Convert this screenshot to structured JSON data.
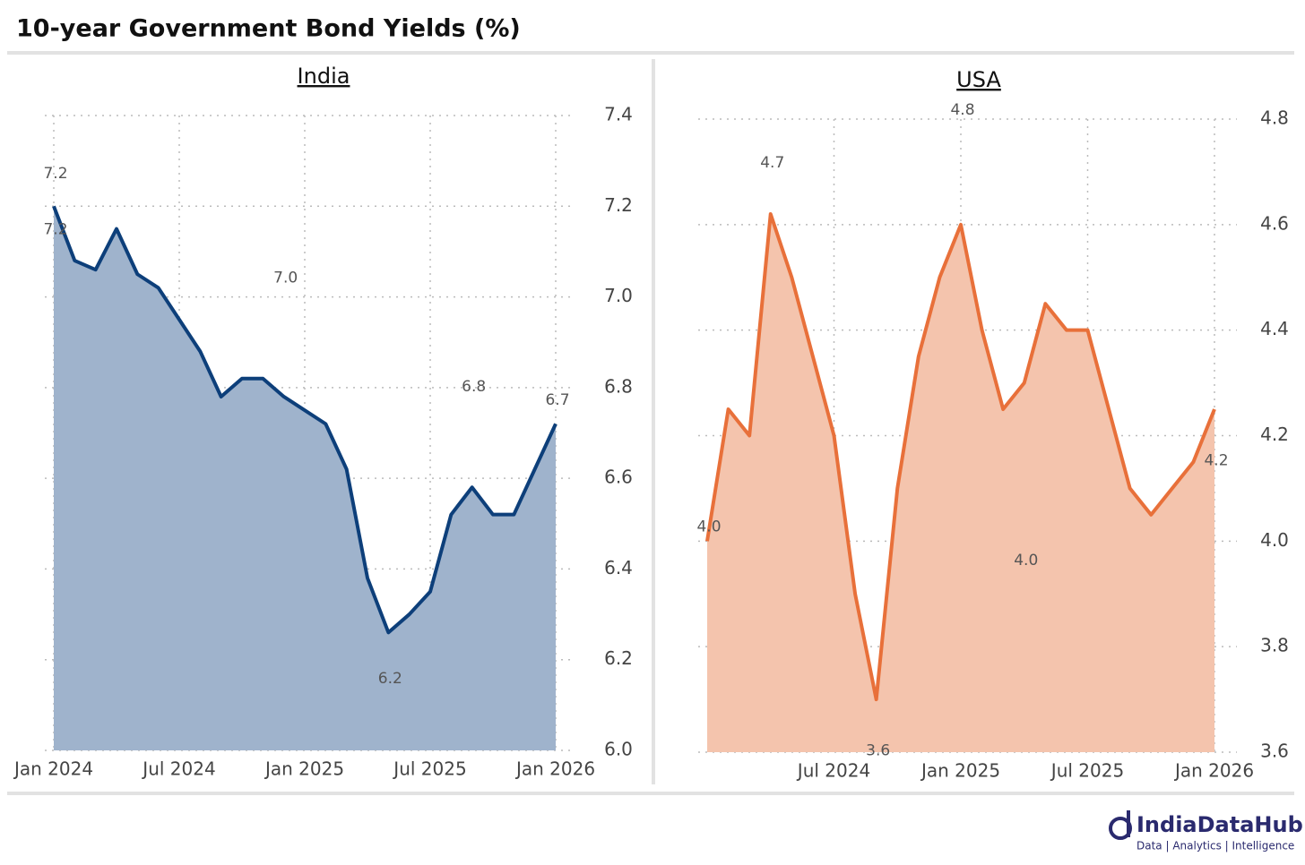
{
  "title": "10-year Government Bond Yields (%)",
  "footer": {
    "brand": "IndiaDataHub",
    "tagline": "Data | Analytics | Intelligence"
  },
  "chart_data": [
    {
      "type": "area",
      "title": "India",
      "x": [
        "2024-01",
        "2024-02",
        "2024-03",
        "2024-04",
        "2024-05",
        "2024-06",
        "2024-07",
        "2024-08",
        "2024-09",
        "2024-10",
        "2024-11",
        "2024-12",
        "2025-01",
        "2025-02",
        "2025-03",
        "2025-04",
        "2025-05",
        "2025-06",
        "2025-07",
        "2025-08",
        "2025-09",
        "2025-10",
        "2025-11",
        "2025-12",
        "2026-01"
      ],
      "series": [
        {
          "name": "India",
          "color": "#0d3f7a",
          "fill": "#9fb3cc",
          "values": [
            7.2,
            7.08,
            7.06,
            7.15,
            7.05,
            7.02,
            6.95,
            6.88,
            6.78,
            6.82,
            6.82,
            6.78,
            6.75,
            6.72,
            6.62,
            6.38,
            6.26,
            6.3,
            6.35,
            6.52,
            6.58,
            6.52,
            6.52,
            6.62,
            6.72
          ]
        }
      ],
      "annotations": [
        {
          "x": "2024-01",
          "value": 7.24,
          "label": "7.2"
        },
        {
          "x": "2024-01",
          "value": 7.18,
          "label": "7.2"
        },
        {
          "x": "2024-12",
          "value": 7.01,
          "label": "7.0"
        },
        {
          "x": "2025-09",
          "value": 6.77,
          "label": "6.8"
        },
        {
          "x": "2026-01",
          "value": 6.74,
          "label": "6.7"
        },
        {
          "x": "2025-05",
          "value": 6.19,
          "label": "6.2"
        }
      ],
      "xlim": [
        "2024-01",
        "2026-01"
      ],
      "xticks": [
        {
          "value": "2024-01",
          "label": "Jan 2024"
        },
        {
          "value": "2024-07",
          "label": "Jul 2024"
        },
        {
          "value": "2025-01",
          "label": "Jan 2025"
        },
        {
          "value": "2025-07",
          "label": "Jul 2025"
        },
        {
          "value": "2026-01",
          "label": "Jan 2026"
        }
      ],
      "ylim": [
        6.0,
        7.4
      ],
      "yticks": [
        {
          "value": 6,
          "label": "6.0"
        },
        6.2,
        6.4,
        6.6,
        6.8,
        {
          "value": 7,
          "label": "7.0"
        },
        7.2,
        7.4
      ],
      "grid": true
    },
    {
      "type": "area",
      "title": "USA",
      "x": [
        "2024-01",
        "2024-02",
        "2024-03",
        "2024-04",
        "2024-05",
        "2024-06",
        "2024-07",
        "2024-08",
        "2024-09",
        "2024-10",
        "2024-11",
        "2024-12",
        "2025-01",
        "2025-02",
        "2025-03",
        "2025-04",
        "2025-05",
        "2025-06",
        "2025-07",
        "2025-08",
        "2025-09",
        "2025-10",
        "2025-11",
        "2025-12",
        "2026-01"
      ],
      "series": [
        {
          "name": "USA",
          "color": "#e8703a",
          "fill": "#f4c4ad",
          "values": [
            4.0,
            4.25,
            4.2,
            4.62,
            4.5,
            4.35,
            4.2,
            3.9,
            3.7,
            4.1,
            4.35,
            4.5,
            4.6,
            4.4,
            4.25,
            4.3,
            4.45,
            4.4,
            4.4,
            4.25,
            4.1,
            4.05,
            4.1,
            4.15,
            4.25
          ]
        }
      ],
      "annotations": [
        {
          "x": "2024-01",
          "value": 4.0,
          "label": "4.0"
        },
        {
          "x": "2024-04",
          "value": 4.69,
          "label": "4.7"
        },
        {
          "x": "2024-09",
          "value": 3.63,
          "label": "3.6"
        },
        {
          "x": "2025-01",
          "value": 4.79,
          "label": "4.8"
        },
        {
          "x": "2025-04",
          "value": 3.99,
          "label": "4.0"
        },
        {
          "x": "2026-01",
          "value": 4.18,
          "label": "4.2"
        }
      ],
      "xlim": [
        "2024-01",
        "2026-01"
      ],
      "xticks": [
        {
          "value": "2024-07",
          "label": "Jul 2024"
        },
        {
          "value": "2025-01",
          "label": "Jan 2025"
        },
        {
          "value": "2025-07",
          "label": "Jul 2025"
        },
        {
          "value": "2026-01",
          "label": "Jan 2026"
        }
      ],
      "ylim": [
        3.6,
        4.8
      ],
      "yticks": [
        3.6,
        3.8,
        {
          "value": 4,
          "label": "4.0"
        },
        4.2,
        4.4,
        4.6,
        4.8
      ],
      "grid": true
    }
  ]
}
